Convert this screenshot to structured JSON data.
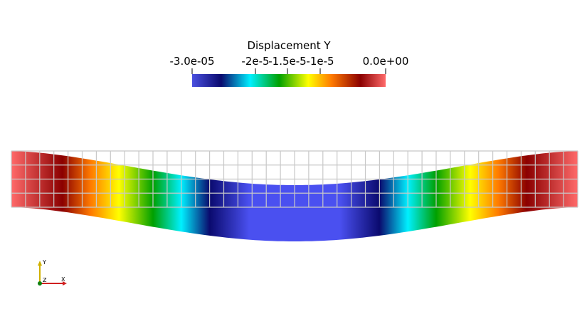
{
  "colorbar": {
    "title": "Displacement Y",
    "ticks": [
      "-3.0e-05",
      "-2e-5",
      "-1.5e-5",
      "-1e-5",
      "0.0e+00"
    ],
    "colormap": [
      "#3b4cc0",
      "#0a0a6e",
      "#00f0ff",
      "#00a000",
      "#ffff00",
      "#ff7a00",
      "#8b0000",
      "#ff6a6a"
    ]
  },
  "mesh": {
    "columns": 40,
    "rows": 4,
    "max_displacement": -3e-05,
    "undeformed_grid_color": "#c8c8c8"
  },
  "orientation_axes": {
    "x_label": "X",
    "y_label": "Y",
    "z_label": "Z",
    "colors": {
      "x": "#d02020",
      "y": "#d0b000",
      "z": "#108010"
    }
  }
}
